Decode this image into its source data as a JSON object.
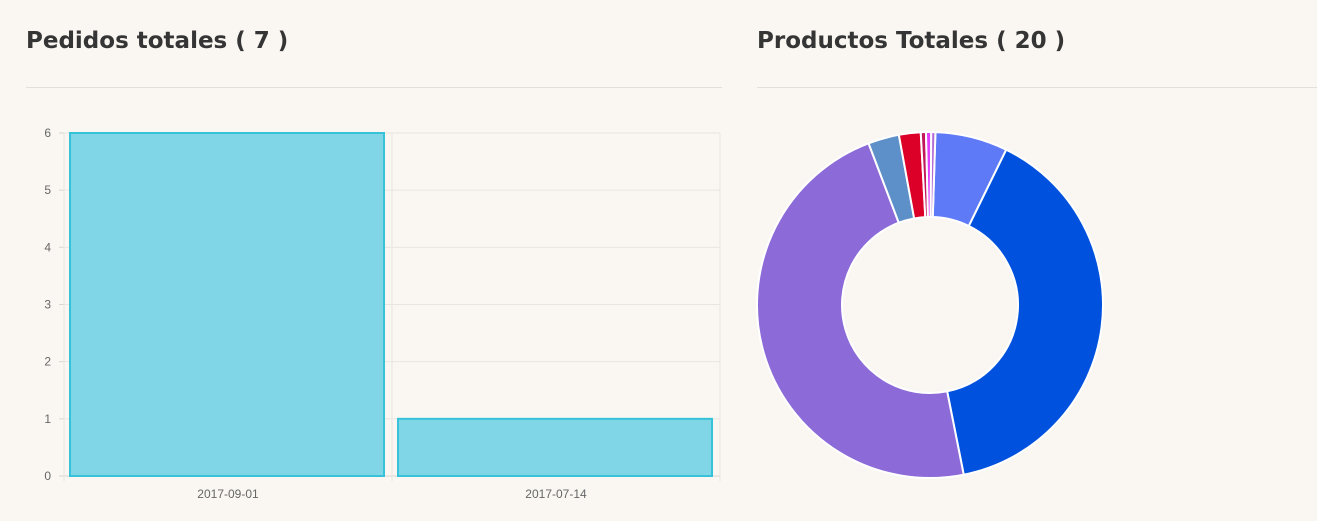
{
  "panels": {
    "orders": {
      "title": "Pedidos totales ( 7 )"
    },
    "products": {
      "title": "Productos Totales ( 20 )"
    }
  },
  "chart_data": [
    {
      "type": "bar",
      "categories": [
        "2017-09-01",
        "2017-07-14"
      ],
      "values": [
        6,
        1
      ],
      "ylim": [
        0,
        6
      ],
      "yticks": [
        0,
        1,
        2,
        3,
        4,
        5,
        6
      ],
      "grid": true,
      "colors": {
        "fill": "#80d6e7",
        "stroke": "#36c2d8"
      }
    },
    {
      "type": "pie",
      "variant": "donut",
      "values": [
        7,
        41,
        49,
        3,
        2.1,
        0.5,
        0.5,
        0.4
      ],
      "colors": [
        "#5f7af7",
        "#0052de",
        "#8c6ad8",
        "#5d8fc8",
        "#dc0028",
        "#c2185b",
        "#e040fb",
        "#b36bd6"
      ]
    }
  ]
}
